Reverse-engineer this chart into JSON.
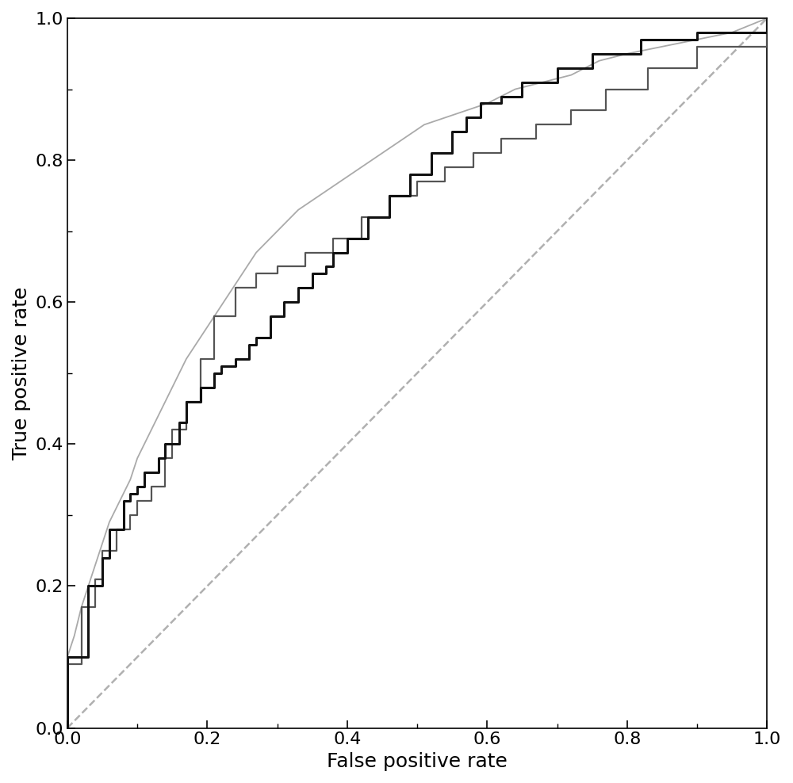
{
  "title": "",
  "xlabel": "False positive rate",
  "ylabel": "True positive rate",
  "xlim": [
    0,
    1
  ],
  "ylim": [
    0,
    1
  ],
  "background_color": "#ffffff",
  "curve_black": {
    "color": "#111111",
    "linewidth": 2.2,
    "fpr": [
      0.0,
      0.0,
      0.03,
      0.03,
      0.05,
      0.05,
      0.06,
      0.06,
      0.08,
      0.08,
      0.09,
      0.09,
      0.1,
      0.1,
      0.11,
      0.11,
      0.13,
      0.13,
      0.14,
      0.14,
      0.16,
      0.16,
      0.17,
      0.17,
      0.19,
      0.19,
      0.21,
      0.21,
      0.22,
      0.22,
      0.24,
      0.24,
      0.26,
      0.26,
      0.27,
      0.27,
      0.29,
      0.29,
      0.31,
      0.31,
      0.33,
      0.33,
      0.35,
      0.35,
      0.37,
      0.37,
      0.38,
      0.38,
      0.4,
      0.4,
      0.43,
      0.43,
      0.46,
      0.46,
      0.49,
      0.49,
      0.52,
      0.52,
      0.55,
      0.55,
      0.57,
      0.57,
      0.59,
      0.59,
      0.62,
      0.62,
      0.65,
      0.65,
      0.7,
      0.7,
      0.75,
      0.75,
      0.82,
      0.82,
      0.9,
      0.9,
      1.0
    ],
    "tpr": [
      0.0,
      0.1,
      0.1,
      0.2,
      0.2,
      0.24,
      0.24,
      0.28,
      0.28,
      0.32,
      0.32,
      0.33,
      0.33,
      0.34,
      0.34,
      0.36,
      0.36,
      0.38,
      0.38,
      0.4,
      0.4,
      0.43,
      0.43,
      0.46,
      0.46,
      0.48,
      0.48,
      0.5,
      0.5,
      0.51,
      0.51,
      0.52,
      0.52,
      0.54,
      0.54,
      0.55,
      0.55,
      0.58,
      0.58,
      0.6,
      0.6,
      0.62,
      0.62,
      0.64,
      0.64,
      0.65,
      0.65,
      0.67,
      0.67,
      0.69,
      0.69,
      0.72,
      0.72,
      0.75,
      0.75,
      0.78,
      0.78,
      0.81,
      0.81,
      0.84,
      0.84,
      0.86,
      0.86,
      0.88,
      0.88,
      0.89,
      0.89,
      0.91,
      0.91,
      0.93,
      0.93,
      0.95,
      0.95,
      0.97,
      0.97,
      0.98,
      1.0
    ]
  },
  "curve_darkgray": {
    "color": "#555555",
    "linewidth": 1.6,
    "fpr": [
      0.0,
      0.0,
      0.02,
      0.02,
      0.04,
      0.04,
      0.05,
      0.05,
      0.07,
      0.07,
      0.09,
      0.09,
      0.1,
      0.1,
      0.12,
      0.12,
      0.14,
      0.14,
      0.15,
      0.15,
      0.17,
      0.17,
      0.19,
      0.19,
      0.21,
      0.21,
      0.24,
      0.24,
      0.27,
      0.27,
      0.3,
      0.3,
      0.34,
      0.34,
      0.38,
      0.38,
      0.42,
      0.42,
      0.46,
      0.46,
      0.5,
      0.5,
      0.54,
      0.54,
      0.58,
      0.58,
      0.62,
      0.62,
      0.67,
      0.67,
      0.72,
      0.72,
      0.77,
      0.77,
      0.83,
      0.83,
      0.9,
      0.9,
      1.0
    ],
    "tpr": [
      0.0,
      0.09,
      0.09,
      0.17,
      0.17,
      0.21,
      0.21,
      0.25,
      0.25,
      0.28,
      0.28,
      0.3,
      0.3,
      0.32,
      0.32,
      0.34,
      0.34,
      0.38,
      0.38,
      0.42,
      0.42,
      0.46,
      0.46,
      0.52,
      0.52,
      0.58,
      0.58,
      0.62,
      0.62,
      0.64,
      0.64,
      0.65,
      0.65,
      0.67,
      0.67,
      0.69,
      0.69,
      0.72,
      0.72,
      0.75,
      0.75,
      0.77,
      0.77,
      0.79,
      0.79,
      0.81,
      0.81,
      0.83,
      0.83,
      0.85,
      0.85,
      0.87,
      0.87,
      0.9,
      0.9,
      0.93,
      0.93,
      0.96,
      1.0
    ]
  },
  "curve_lightgray": {
    "color": "#aaaaaa",
    "linewidth": 1.3,
    "fpr": [
      0.0,
      0.0,
      0.01,
      0.02,
      0.03,
      0.04,
      0.05,
      0.06,
      0.07,
      0.08,
      0.09,
      0.1,
      0.11,
      0.13,
      0.15,
      0.17,
      0.19,
      0.21,
      0.23,
      0.25,
      0.27,
      0.29,
      0.31,
      0.33,
      0.36,
      0.39,
      0.42,
      0.45,
      0.48,
      0.51,
      0.54,
      0.57,
      0.6,
      0.64,
      0.68,
      0.72,
      0.76,
      0.8,
      0.85,
      0.9,
      0.95,
      1.0
    ],
    "tpr": [
      0.0,
      0.1,
      0.13,
      0.17,
      0.2,
      0.23,
      0.26,
      0.29,
      0.31,
      0.33,
      0.35,
      0.38,
      0.4,
      0.44,
      0.48,
      0.52,
      0.55,
      0.58,
      0.61,
      0.64,
      0.67,
      0.69,
      0.71,
      0.73,
      0.75,
      0.77,
      0.79,
      0.81,
      0.83,
      0.85,
      0.86,
      0.87,
      0.88,
      0.9,
      0.91,
      0.92,
      0.94,
      0.95,
      0.96,
      0.97,
      0.98,
      1.0
    ]
  },
  "diagonal": {
    "color": "#b0b0b0",
    "linewidth": 1.8,
    "linestyle": "--"
  },
  "tick_fontsize": 16,
  "label_fontsize": 18,
  "xticks": [
    0,
    0.2,
    0.4,
    0.6,
    0.8,
    1.0
  ],
  "yticks": [
    0,
    0.2,
    0.4,
    0.6,
    0.8,
    1.0
  ]
}
